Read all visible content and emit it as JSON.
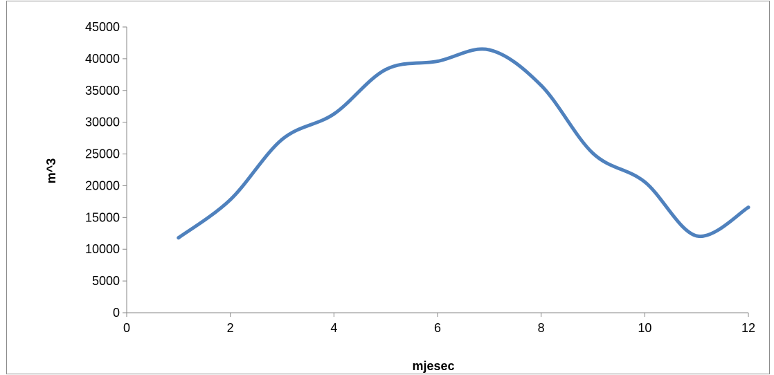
{
  "chart_data": {
    "type": "line",
    "xlabel": "mjesec",
    "ylabel": "m^3",
    "xlim": [
      0,
      12
    ],
    "ylim": [
      0,
      45000
    ],
    "x_ticks": [
      0,
      2,
      4,
      6,
      8,
      10,
      12
    ],
    "y_ticks": [
      0,
      5000,
      10000,
      15000,
      20000,
      25000,
      30000,
      35000,
      40000,
      45000
    ],
    "grid": false,
    "legend": "none",
    "smooth": true,
    "series": [
      {
        "color": "#4f81bd",
        "x": [
          1,
          2,
          3,
          4,
          5,
          6,
          7,
          8,
          9,
          10,
          11,
          12
        ],
        "y": [
          11800,
          17800,
          27300,
          31300,
          38300,
          39600,
          41400,
          35800,
          25100,
          20600,
          12100,
          16600
        ]
      }
    ]
  }
}
